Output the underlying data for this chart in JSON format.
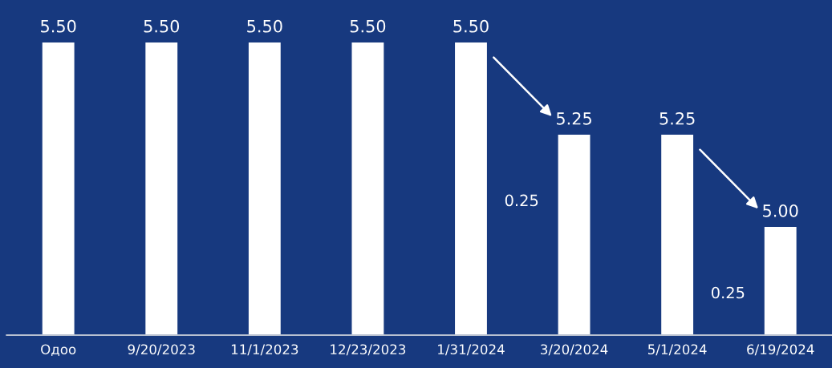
{
  "chart_data": {
    "type": "bar",
    "categories": [
      "Одоо",
      "9/20/2023",
      "11/1/2023",
      "12/23/2023",
      "1/31/2024",
      "3/20/2024",
      "5/1/2024",
      "6/19/2024"
    ],
    "values": [
      5.5,
      5.5,
      5.5,
      5.5,
      5.5,
      5.25,
      5.25,
      5.0
    ],
    "value_labels": [
      "5.50",
      "5.50",
      "5.50",
      "5.50",
      "5.50",
      "5.25",
      "5.25",
      "5.00"
    ],
    "color": "#ffffff",
    "ylim": [
      4.707,
      5.615
    ],
    "annotations": [
      "0.25",
      "0.25"
    ],
    "grid": false
  }
}
